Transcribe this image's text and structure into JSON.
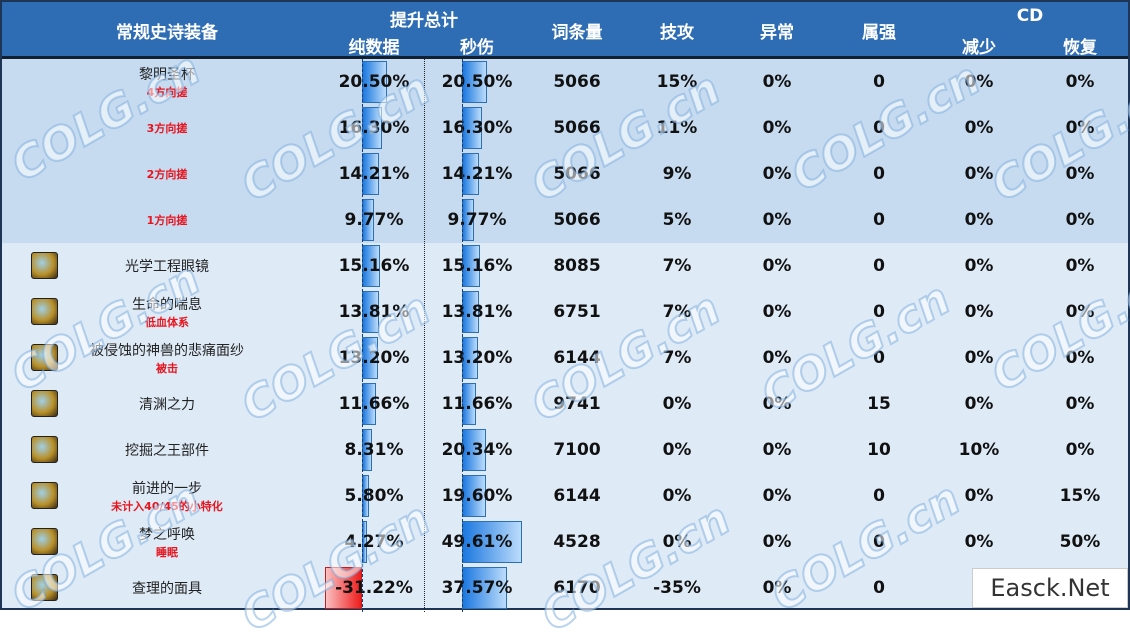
{
  "header": {
    "equipment": "常规史诗装备",
    "total": "提升总计",
    "pure": "纯数据",
    "dps": "秒伤",
    "entries": "词条量",
    "skill_atk": "技攻",
    "abnormal": "异常",
    "element": "属强",
    "cd": "CD",
    "cd_reduce": "减少",
    "cd_recover": "恢复"
  },
  "colors": {
    "header": "#2e6db4",
    "group_row": "#c6dbf0",
    "row": "#deebf7",
    "bar_positive": "#1b78e0",
    "bar_negative": "#ee1c1c",
    "note": "#e8141e"
  },
  "rows": [
    {
      "name": "黎明圣杯",
      "note": "4方向搓",
      "pure": "20.50%",
      "pure_v": 20.5,
      "dps": "20.50%",
      "dps_v": 20.5,
      "entries": "5066",
      "skill": "15%",
      "abn": "0%",
      "elem": "0",
      "cdr": "0%",
      "rec": "0%",
      "group": true,
      "icon": true
    },
    {
      "name": "",
      "note": "3方向搓",
      "pure": "16.30%",
      "pure_v": 16.3,
      "dps": "16.30%",
      "dps_v": 16.3,
      "entries": "5066",
      "skill": "11%",
      "abn": "0%",
      "elem": "0",
      "cdr": "0%",
      "rec": "0%",
      "group": true
    },
    {
      "name": "",
      "note": "2方向搓",
      "pure": "14.21%",
      "pure_v": 14.21,
      "dps": "14.21%",
      "dps_v": 14.21,
      "entries": "5066",
      "skill": "9%",
      "abn": "0%",
      "elem": "0",
      "cdr": "0%",
      "rec": "0%",
      "group": true
    },
    {
      "name": "",
      "note": "1方向搓",
      "pure": "9.77%",
      "pure_v": 9.77,
      "dps": "9.77%",
      "dps_v": 9.77,
      "entries": "5066",
      "skill": "5%",
      "abn": "0%",
      "elem": "0",
      "cdr": "0%",
      "rec": "0%",
      "group": true
    },
    {
      "name": "光学工程眼镜",
      "note": "",
      "pure": "15.16%",
      "pure_v": 15.16,
      "dps": "15.16%",
      "dps_v": 15.16,
      "entries": "8085",
      "skill": "7%",
      "abn": "0%",
      "elem": "0",
      "cdr": "0%",
      "rec": "0%",
      "icon": true
    },
    {
      "name": "生命的喘息",
      "note": "低血体系",
      "pure": "13.81%",
      "pure_v": 13.81,
      "dps": "13.81%",
      "dps_v": 13.81,
      "entries": "6751",
      "skill": "7%",
      "abn": "0%",
      "elem": "0",
      "cdr": "0%",
      "rec": "0%",
      "icon": true
    },
    {
      "name": "被侵蚀的神兽的悲痛面纱",
      "note": "被击",
      "pure": "13.20%",
      "pure_v": 13.2,
      "dps": "13.20%",
      "dps_v": 13.2,
      "entries": "6144",
      "skill": "7%",
      "abn": "0%",
      "elem": "0",
      "cdr": "0%",
      "rec": "0%",
      "icon": true
    },
    {
      "name": "清渊之力",
      "note": "",
      "pure": "11.66%",
      "pure_v": 11.66,
      "dps": "11.66%",
      "dps_v": 11.66,
      "entries": "9741",
      "skill": "0%",
      "abn": "0%",
      "elem": "15",
      "cdr": "0%",
      "rec": "0%",
      "icon": true
    },
    {
      "name": "挖掘之王部件",
      "note": "",
      "pure": "8.31%",
      "pure_v": 8.31,
      "dps": "20.34%",
      "dps_v": 20.34,
      "entries": "7100",
      "skill": "0%",
      "abn": "0%",
      "elem": "10",
      "cdr": "10%",
      "rec": "0%",
      "icon": true
    },
    {
      "name": "前进的一步",
      "note": "未计入40/45的小特化",
      "pure": "5.80%",
      "pure_v": 5.8,
      "dps": "19.60%",
      "dps_v": 19.6,
      "entries": "6144",
      "skill": "0%",
      "abn": "0%",
      "elem": "0",
      "cdr": "0%",
      "rec": "15%",
      "icon": true
    },
    {
      "name": "梦之呼唤",
      "note": "睡眠",
      "pure": "4.27%",
      "pure_v": 4.27,
      "dps": "49.61%",
      "dps_v": 49.61,
      "entries": "4528",
      "skill": "0%",
      "abn": "0%",
      "elem": "0",
      "cdr": "0%",
      "rec": "50%",
      "icon": true
    },
    {
      "name": "查理的面具",
      "note": "",
      "pure": "-31.22%",
      "pure_v": -31.22,
      "dps": "37.57%",
      "dps_v": 37.57,
      "entries": "6170",
      "skill": "-35%",
      "abn": "0%",
      "elem": "0",
      "cdr": "5",
      "rec": "",
      "icon": true
    }
  ],
  "watermark": "COLG.cn",
  "corner_watermark": "Easck.Net"
}
